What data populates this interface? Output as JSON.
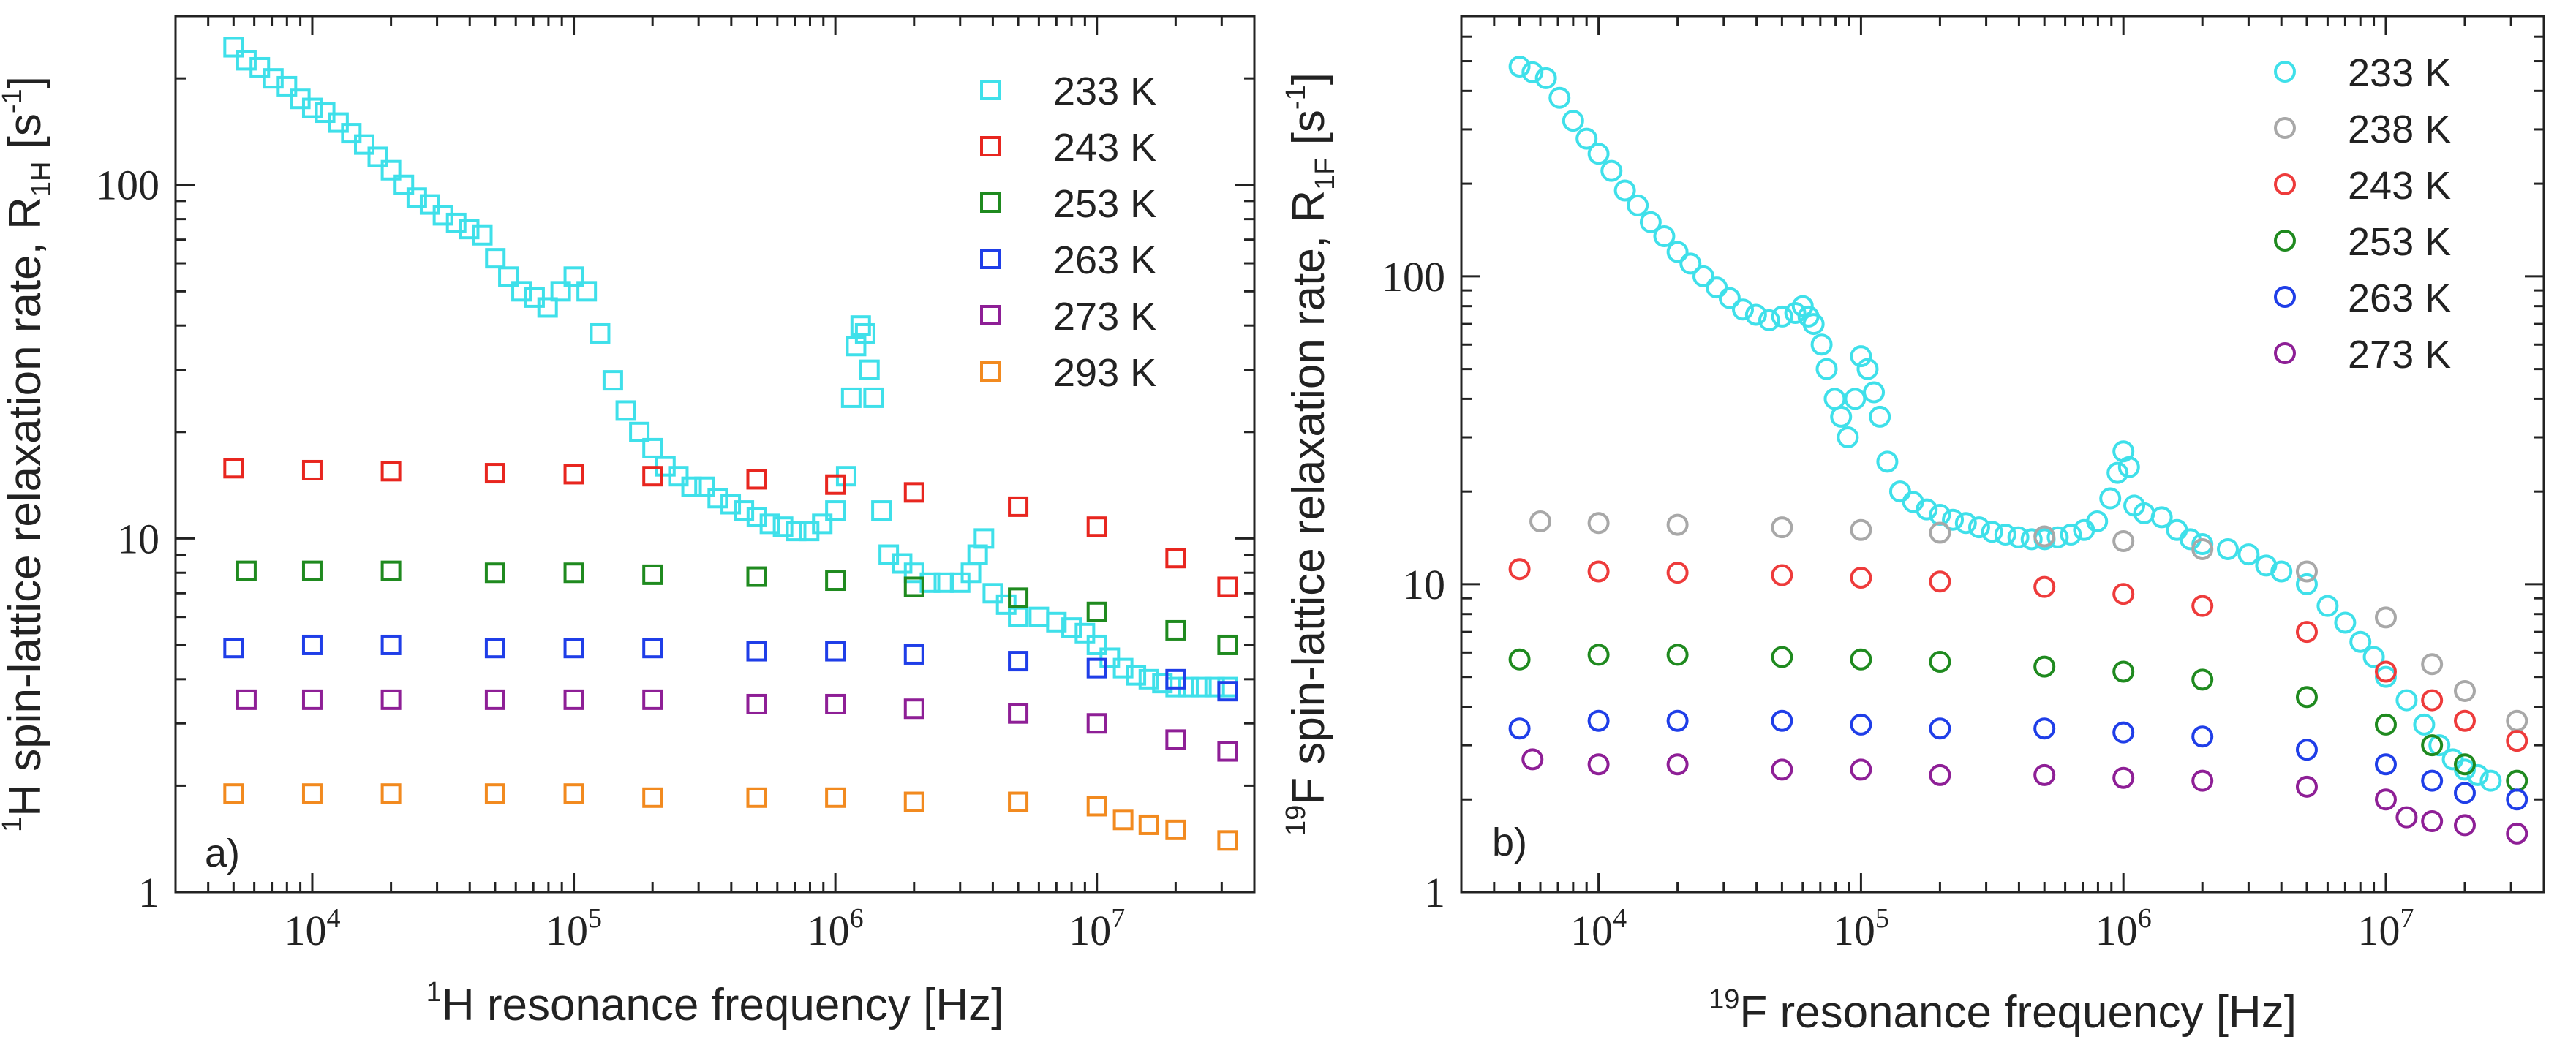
{
  "chart_data": [
    {
      "type": "scatter",
      "panel_label": "a)",
      "xscale": "log",
      "yscale": "log",
      "xlim": [
        3000,
        40000000
      ],
      "ylim": [
        1,
        300
      ],
      "x_ticks": [
        10000,
        100000,
        1000000,
        10000000
      ],
      "x_tick_base": [
        "10",
        "10",
        "10",
        "10"
      ],
      "x_tick_exp": [
        "4",
        "5",
        "6",
        "7"
      ],
      "y_ticks": [
        1,
        10,
        100
      ],
      "y_tick_labels": [
        "1",
        "10",
        "100"
      ],
      "xlabel": {
        "pre": "",
        "sup": "1",
        "main": "H resonance  frequency [Hz]"
      },
      "ylabel": {
        "sup1": "1",
        "main": "H spin-lattice relaxation rate, R",
        "sub": "1H",
        "tail": " [s",
        "sup2": "-1",
        "end": "]"
      },
      "marker": "square",
      "legend_position": "top-right",
      "series": [
        {
          "name": "233 K",
          "color": "#3fe0ea",
          "x": [
            5000,
            5600,
            6300,
            7100,
            8000,
            9000,
            10000,
            11200,
            12600,
            14100,
            15800,
            17800,
            20000,
            22400,
            25100,
            28200,
            31600,
            35500,
            39800,
            44700,
            50100,
            56200,
            63100,
            70800,
            79400,
            89100,
            100000,
            112000,
            126000,
            141000,
            158000,
            178000,
            200000,
            224000,
            251000,
            282000,
            316000,
            355000,
            398000,
            447000,
            501000,
            562000,
            631000,
            708000,
            794000,
            891000,
            1000000,
            1100000,
            1150000,
            1200000,
            1250000,
            1300000,
            1350000,
            1400000,
            1500000,
            1600000,
            1800000,
            2000000,
            2300000,
            2600000,
            3000000,
            3300000,
            3500000,
            3700000,
            4000000,
            4500000,
            5000000,
            6000000,
            7000000,
            8000000,
            9000000,
            10000000,
            11200000,
            12600000,
            14100000,
            15800000,
            17800000,
            20000000,
            22400000,
            25100000,
            28200000,
            31600000
          ],
          "y": [
            245,
            225,
            215,
            200,
            190,
            175,
            165,
            160,
            150,
            140,
            130,
            120,
            110,
            100,
            92,
            88,
            82,
            78,
            75,
            72,
            62,
            55,
            50,
            48,
            45,
            50,
            55,
            50,
            38,
            28,
            23,
            20,
            18,
            16,
            15,
            14,
            14,
            13,
            12.5,
            12,
            11.5,
            11,
            10.8,
            10.5,
            10.5,
            11,
            12,
            15,
            25,
            35,
            40,
            38,
            30,
            25,
            12,
            9,
            8.5,
            8,
            7.5,
            7.5,
            7.5,
            8,
            9,
            10,
            7,
            6.5,
            6,
            6,
            5.8,
            5.6,
            5.4,
            5,
            4.6,
            4.3,
            4.1,
            4,
            3.9,
            3.8,
            3.8,
            3.8,
            3.8,
            3.8
          ]
        },
        {
          "name": "243 K",
          "color": "#e8261f",
          "x": [
            5000,
            10000,
            20000,
            50000,
            100000,
            200000,
            500000,
            1000000,
            2000000,
            5000000,
            10000000,
            20000000,
            31600000
          ],
          "y": [
            15.8,
            15.6,
            15.5,
            15.3,
            15.2,
            15.0,
            14.7,
            14.2,
            13.5,
            12.3,
            10.8,
            8.8,
            7.3
          ]
        },
        {
          "name": "253 K",
          "color": "#1f8a1f",
          "x": [
            5600,
            10000,
            20000,
            50000,
            100000,
            200000,
            500000,
            1000000,
            2000000,
            5000000,
            10000000,
            20000000,
            31600000
          ],
          "y": [
            8.1,
            8.1,
            8.1,
            8.0,
            8.0,
            7.9,
            7.8,
            7.6,
            7.3,
            6.8,
            6.2,
            5.5,
            5.0
          ]
        },
        {
          "name": "263 K",
          "color": "#1f3ee8",
          "x": [
            5000,
            10000,
            20000,
            50000,
            100000,
            200000,
            500000,
            1000000,
            2000000,
            5000000,
            10000000,
            20000000,
            31600000
          ],
          "y": [
            4.9,
            5.0,
            5.0,
            4.9,
            4.9,
            4.9,
            4.8,
            4.8,
            4.7,
            4.5,
            4.3,
            4.0,
            3.7
          ]
        },
        {
          "name": "273 K",
          "color": "#8e1f96",
          "x": [
            5600,
            10000,
            20000,
            50000,
            100000,
            200000,
            500000,
            1000000,
            2000000,
            5000000,
            10000000,
            20000000,
            31600000
          ],
          "y": [
            3.5,
            3.5,
            3.5,
            3.5,
            3.5,
            3.5,
            3.4,
            3.4,
            3.3,
            3.2,
            3.0,
            2.7,
            2.5
          ]
        },
        {
          "name": "293 K",
          "color": "#f28a1f",
          "x": [
            5000,
            10000,
            20000,
            50000,
            100000,
            200000,
            500000,
            1000000,
            2000000,
            5000000,
            10000000,
            12600000,
            15800000,
            20000000,
            31600000
          ],
          "y": [
            1.9,
            1.9,
            1.9,
            1.9,
            1.9,
            1.85,
            1.85,
            1.85,
            1.8,
            1.8,
            1.75,
            1.6,
            1.55,
            1.5,
            1.4
          ]
        }
      ]
    },
    {
      "type": "scatter",
      "panel_label": "b)",
      "xscale": "log",
      "yscale": "log",
      "xlim": [
        3000,
        40000000
      ],
      "ylim": [
        1,
        700
      ],
      "x_ticks": [
        10000,
        100000,
        1000000,
        10000000
      ],
      "x_tick_base": [
        "10",
        "10",
        "10",
        "10"
      ],
      "x_tick_exp": [
        "4",
        "5",
        "6",
        "7"
      ],
      "y_ticks": [
        1,
        10,
        100
      ],
      "y_tick_labels": [
        "1",
        "10",
        "100"
      ],
      "xlabel": {
        "pre": "",
        "sup": "19",
        "main": "F  resonance frequency [Hz]"
      },
      "ylabel": {
        "sup1": "19",
        "main": "F spin-lattice relaxation rate, R",
        "sub": "1F",
        "tail": " [s",
        "sup2": "-1",
        "end": "]"
      },
      "marker": "circle",
      "legend_position": "top-right",
      "series": [
        {
          "name": "233 K",
          "color": "#3fe0ea",
          "x": [
            5000,
            5600,
            6300,
            7100,
            8000,
            9000,
            10000,
            11200,
            12600,
            14100,
            15800,
            17800,
            20000,
            22400,
            25100,
            28200,
            31600,
            35500,
            39800,
            44700,
            50100,
            56200,
            60000,
            63100,
            66000,
            70800,
            74000,
            79400,
            84000,
            89100,
            95000,
            100000,
            106000,
            112000,
            118000,
            126000,
            141000,
            158000,
            178000,
            200000,
            224000,
            251000,
            282000,
            316000,
            355000,
            398000,
            447000,
            501000,
            562000,
            631000,
            708000,
            794000,
            891000,
            950000,
            1000000,
            1050000,
            1100000,
            1200000,
            1400000,
            1600000,
            1800000,
            2000000,
            2500000,
            3000000,
            3500000,
            4000000,
            5000000,
            6000000,
            7000000,
            8000000,
            9000000,
            10000000,
            12000000,
            14000000,
            16000000,
            18000000,
            20000000,
            22400000,
            25100000
          ],
          "y": [
            480,
            460,
            440,
            380,
            320,
            280,
            250,
            220,
            190,
            170,
            150,
            135,
            120,
            110,
            100,
            92,
            85,
            78,
            75,
            72,
            74,
            76,
            80,
            74,
            70,
            60,
            50,
            40,
            35,
            30,
            40,
            55,
            50,
            42,
            35,
            25,
            20,
            18.5,
            17.5,
            16.8,
            16.2,
            15.8,
            15.3,
            14.8,
            14.5,
            14.2,
            14,
            14,
            14.2,
            14.5,
            15,
            16,
            19,
            23,
            27,
            24,
            18,
            17,
            16.5,
            15,
            14,
            13.5,
            13,
            12.5,
            11.5,
            11,
            10,
            8.5,
            7.5,
            6.5,
            5.8,
            5,
            4.2,
            3.5,
            3,
            2.7,
            2.5,
            2.4,
            2.3
          ]
        },
        {
          "name": "238 K",
          "color": "#a8a8a8",
          "x": [
            6000,
            10000,
            20000,
            50000,
            100000,
            200000,
            500000,
            1000000,
            2000000,
            5000000,
            10000000,
            15000000,
            20000000,
            31600000
          ],
          "y": [
            16,
            15.8,
            15.6,
            15.3,
            15.0,
            14.7,
            14.3,
            13.8,
            13.0,
            11.0,
            7.8,
            5.5,
            4.5,
            3.6
          ]
        },
        {
          "name": "243 K",
          "color": "#ee3b3b",
          "x": [
            5000,
            10000,
            20000,
            50000,
            100000,
            200000,
            500000,
            1000000,
            2000000,
            5000000,
            10000000,
            15000000,
            20000000,
            31600000
          ],
          "y": [
            11.2,
            11.0,
            10.9,
            10.7,
            10.5,
            10.2,
            9.8,
            9.3,
            8.5,
            7.0,
            5.2,
            4.2,
            3.6,
            3.1
          ]
        },
        {
          "name": "253 K",
          "color": "#1f8a1f",
          "x": [
            5000,
            10000,
            20000,
            50000,
            100000,
            200000,
            500000,
            1000000,
            2000000,
            5000000,
            10000000,
            15000000,
            20000000,
            31600000
          ],
          "y": [
            5.7,
            5.9,
            5.9,
            5.8,
            5.7,
            5.6,
            5.4,
            5.2,
            4.9,
            4.3,
            3.5,
            3.0,
            2.6,
            2.3
          ]
        },
        {
          "name": "263 K",
          "color": "#1f3ee8",
          "x": [
            5000,
            10000,
            20000,
            50000,
            100000,
            200000,
            500000,
            1000000,
            2000000,
            5000000,
            10000000,
            15000000,
            20000000,
            31600000
          ],
          "y": [
            3.4,
            3.6,
            3.6,
            3.6,
            3.5,
            3.4,
            3.4,
            3.3,
            3.2,
            2.9,
            2.6,
            2.3,
            2.1,
            2.0
          ]
        },
        {
          "name": "273 K",
          "color": "#8e1f96",
          "x": [
            5600,
            10000,
            20000,
            50000,
            100000,
            200000,
            500000,
            1000000,
            2000000,
            5000000,
            10000000,
            12000000,
            15000000,
            20000000,
            31600000
          ],
          "y": [
            2.7,
            2.6,
            2.6,
            2.5,
            2.5,
            2.4,
            2.4,
            2.35,
            2.3,
            2.2,
            2.0,
            1.75,
            1.7,
            1.65,
            1.55
          ]
        }
      ]
    }
  ]
}
